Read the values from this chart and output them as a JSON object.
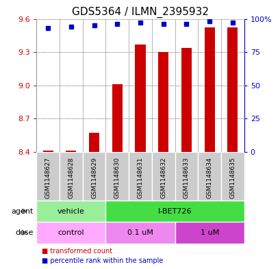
{
  "title": "GDS5364 / ILMN_2395932",
  "samples": [
    "GSM1148627",
    "GSM1148628",
    "GSM1148629",
    "GSM1148630",
    "GSM1148631",
    "GSM1148632",
    "GSM1148633",
    "GSM1148634",
    "GSM1148635"
  ],
  "bar_values": [
    8.41,
    8.41,
    8.57,
    9.01,
    9.37,
    9.3,
    9.34,
    9.52,
    9.52
  ],
  "dot_values": [
    93,
    94,
    95,
    96,
    97,
    96,
    96,
    98,
    97
  ],
  "ylim_left": [
    8.4,
    9.6
  ],
  "ylim_right": [
    0,
    100
  ],
  "yticks_left": [
    8.4,
    8.7,
    9.0,
    9.3,
    9.6
  ],
  "yticks_right": [
    0,
    25,
    50,
    75,
    100
  ],
  "ytick_labels_right": [
    "0",
    "25",
    "50",
    "75",
    "100%"
  ],
  "bar_color": "#cc0000",
  "dot_color": "#0000cc",
  "agent_groups": [
    {
      "label": "vehicle",
      "start": 0,
      "end": 3,
      "color": "#99ee99"
    },
    {
      "label": "I-BET726",
      "start": 3,
      "end": 9,
      "color": "#44dd44"
    }
  ],
  "dose_groups": [
    {
      "label": "control",
      "start": 0,
      "end": 3,
      "color": "#ffaaff"
    },
    {
      "label": "0.1 uM",
      "start": 3,
      "end": 6,
      "color": "#ee88ee"
    },
    {
      "label": "1 uM",
      "start": 6,
      "end": 9,
      "color": "#cc44cc"
    }
  ],
  "legend_items": [
    {
      "label": "transformed count",
      "color": "#cc0000"
    },
    {
      "label": "percentile rank within the sample",
      "color": "#0000cc"
    }
  ],
  "bar_width": 0.45,
  "tick_fontsize": 8,
  "sample_fontsize": 6.5,
  "title_fontsize": 11,
  "left_tick_color": "#cc0000",
  "right_tick_color": "#0000cc",
  "bg_color": "#ffffff",
  "sample_box_color": "#cccccc",
  "row_label_fontsize": 8,
  "group_fontsize": 8
}
